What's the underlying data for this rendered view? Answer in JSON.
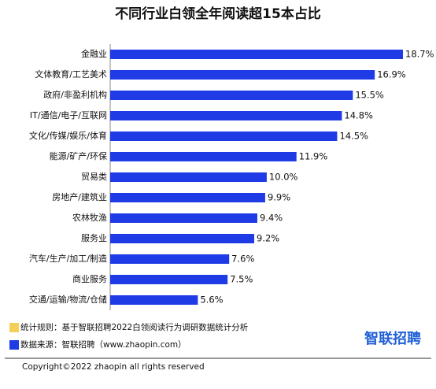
{
  "chart_data": {
    "type": "hbar",
    "title": "不同行业白领全年阅读超15本占比",
    "categories": [
      "金融业",
      "文体教育/工艺美术",
      "政府/非盈利机构",
      "IT/通信/电子/互联网",
      "文化/传媒/娱乐/体育",
      "能源/矿产/环保",
      "贸易类",
      "房地产/建筑业",
      "农林牧渔",
      "服务业",
      "汽车/生产/加工/制造",
      "商业服务",
      "交通/运输/物流/仓储"
    ],
    "values": [
      18.7,
      16.9,
      15.5,
      14.8,
      14.5,
      11.9,
      10.0,
      9.9,
      9.4,
      9.2,
      7.6,
      7.5,
      5.6
    ],
    "value_labels": [
      "18.7%",
      "16.9%",
      "15.5%",
      "14.8%",
      "14.5%",
      "11.9%",
      "10.0%",
      "9.9%",
      "9.4%",
      "9.2%",
      "7.6%",
      "7.5%",
      "5.6%"
    ],
    "color": "#1f3be6"
  },
  "footer": {
    "notes": [
      {
        "text": "统计规则：基于智联招聘2022白领阅读行为调研数据统计分析",
        "color": "#f5cf5a"
      },
      {
        "text": "数据来源：智联招聘（www.zhaopin.com）",
        "color": "#1f3be6"
      }
    ],
    "logo": "智联招聘",
    "copyright": "Copyright©2022 zhaopin all rights reserved"
  }
}
